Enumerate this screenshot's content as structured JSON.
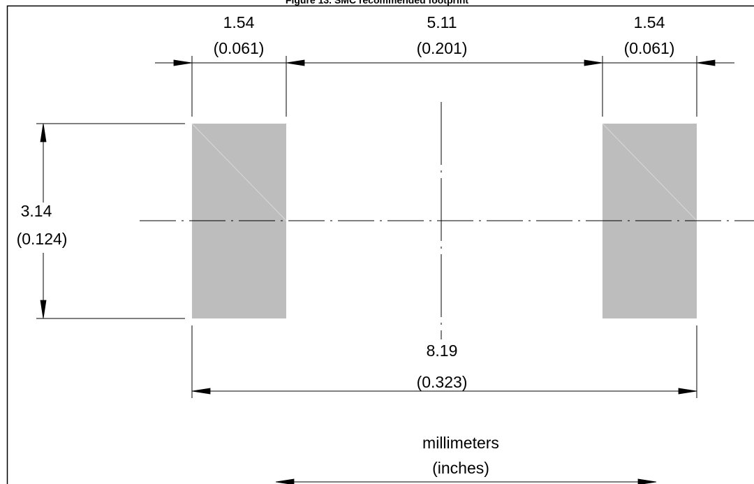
{
  "figure": {
    "title": "Figure 13. SMC recommended footprint"
  },
  "dimensions": {
    "pad_width_left": {
      "mm": "1.54",
      "in": "(0.061)"
    },
    "pad_gap": {
      "mm": "5.11",
      "in": "(0.201)"
    },
    "pad_width_right": {
      "mm": "1.54",
      "in": "(0.061)"
    },
    "pad_height": {
      "mm": "3.14",
      "in": "(0.124)"
    },
    "overall_length": {
      "mm": "8.19",
      "in": "(0.323)"
    }
  },
  "units_legend": {
    "primary": "millimeters",
    "secondary": "(inches)"
  },
  "colors": {
    "pad_fill": "#bdbdbd",
    "line": "#000000"
  }
}
